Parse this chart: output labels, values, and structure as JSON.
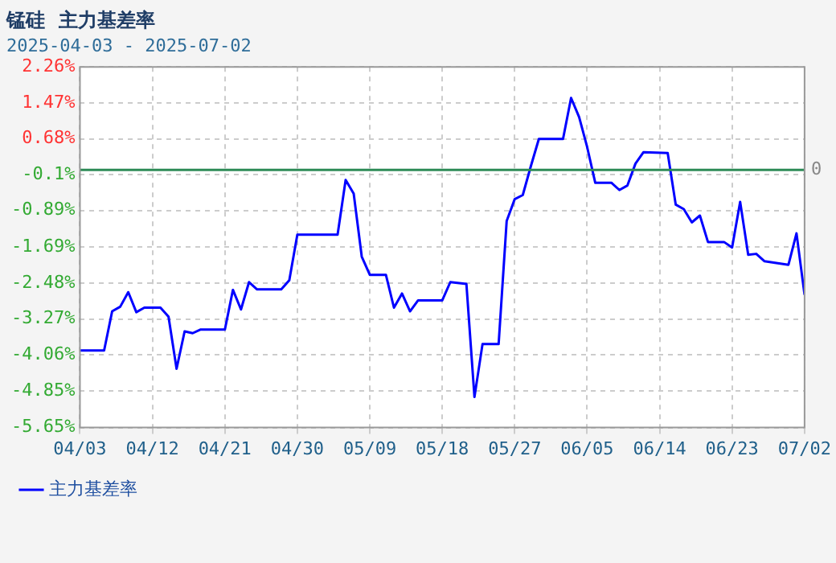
{
  "chart_data": {
    "type": "line",
    "title": "锰硅  主力基差率",
    "subtitle": "2025-04-03 - 2025-07-02",
    "x": [
      "2025-04-03",
      "2025-04-06",
      "2025-04-07",
      "2025-04-08",
      "2025-04-09",
      "2025-04-10",
      "2025-04-11",
      "2025-04-13",
      "2025-04-14",
      "2025-04-15",
      "2025-04-16",
      "2025-04-17",
      "2025-04-18",
      "2025-04-21",
      "2025-04-22",
      "2025-04-23",
      "2025-04-24",
      "2025-04-25",
      "2025-04-28",
      "2025-04-29",
      "2025-04-30",
      "2025-05-05",
      "2025-05-06",
      "2025-05-07",
      "2025-05-08",
      "2025-05-09",
      "2025-05-11",
      "2025-05-12",
      "2025-05-13",
      "2025-05-14",
      "2025-05-15",
      "2025-05-18",
      "2025-05-19",
      "2025-05-21",
      "2025-05-22",
      "2025-05-23",
      "2025-05-25",
      "2025-05-26",
      "2025-05-27",
      "2025-05-28",
      "2025-05-29",
      "2025-05-30",
      "2025-06-02",
      "2025-06-03",
      "2025-06-04",
      "2025-06-05",
      "2025-06-06",
      "2025-06-08",
      "2025-06-09",
      "2025-06-10",
      "2025-06-11",
      "2025-06-12",
      "2025-06-15",
      "2025-06-16",
      "2025-06-17",
      "2025-06-18",
      "2025-06-19",
      "2025-06-20",
      "2025-06-22",
      "2025-06-23",
      "2025-06-24",
      "2025-06-25",
      "2025-06-26",
      "2025-06-27",
      "2025-06-30",
      "2025-07-01",
      "2025-07-02"
    ],
    "series": [
      {
        "name": "主力基差率",
        "color": "#0000ff",
        "values": [
          -3.96,
          -3.96,
          -3.1,
          -3.0,
          -2.68,
          -3.12,
          -3.02,
          -3.02,
          -3.22,
          -4.36,
          -3.54,
          -3.58,
          -3.5,
          -3.5,
          -2.63,
          -3.06,
          -2.46,
          -2.62,
          -2.62,
          -2.42,
          -1.42,
          -1.42,
          -0.22,
          -0.52,
          -1.9,
          -2.3,
          -2.3,
          -3.02,
          -2.71,
          -3.1,
          -2.86,
          -2.86,
          -2.46,
          -2.5,
          -4.98,
          -3.82,
          -3.82,
          -1.12,
          -0.64,
          -0.55,
          0.08,
          0.68,
          0.68,
          1.58,
          1.16,
          0.5,
          -0.28,
          -0.28,
          -0.44,
          -0.34,
          0.14,
          0.39,
          0.37,
          -0.76,
          -0.86,
          -1.15,
          -1.0,
          -1.58,
          -1.58,
          -1.7,
          -0.7,
          -1.86,
          -1.84,
          -2.0,
          -2.08,
          -1.39,
          -2.74
        ]
      }
    ],
    "xlim": [
      "2025-04-03",
      "2025-07-02"
    ],
    "xticks": [
      {
        "value": "2025-04-03",
        "label": "04/03"
      },
      {
        "value": "2025-04-12",
        "label": "04/12"
      },
      {
        "value": "2025-04-21",
        "label": "04/21"
      },
      {
        "value": "2025-04-30",
        "label": "04/30"
      },
      {
        "value": "2025-05-09",
        "label": "05/09"
      },
      {
        "value": "2025-05-18",
        "label": "05/18"
      },
      {
        "value": "2025-05-27",
        "label": "05/27"
      },
      {
        "value": "2025-06-05",
        "label": "06/05"
      },
      {
        "value": "2025-06-14",
        "label": "06/14"
      },
      {
        "value": "2025-06-23",
        "label": "06/23"
      },
      {
        "value": "2025-07-02",
        "label": "07/02"
      }
    ],
    "ylim": [
      -5.65,
      2.26
    ],
    "yticks": [
      {
        "value": -5.65,
        "label": "-5.65%"
      },
      {
        "value": -4.85,
        "label": "-4.85%"
      },
      {
        "value": -4.06,
        "label": "-4.06%"
      },
      {
        "value": -3.27,
        "label": "-3.27%"
      },
      {
        "value": -2.48,
        "label": "-2.48%"
      },
      {
        "value": -1.69,
        "label": "-1.69%"
      },
      {
        "value": -0.89,
        "label": "-0.89%"
      },
      {
        "value": -0.1,
        "label": "-0.1%"
      },
      {
        "value": 0.68,
        "label": "0.68%"
      },
      {
        "value": 1.47,
        "label": "1.47%"
      },
      {
        "value": 2.26,
        "label": "2.26%"
      }
    ],
    "ref_lines": [
      {
        "axis": "y",
        "value": 0,
        "label": "0",
        "color": "#2e8b57"
      }
    ],
    "grid": true,
    "legend": "bottom left",
    "marker": "none",
    "line_style": "solid"
  }
}
